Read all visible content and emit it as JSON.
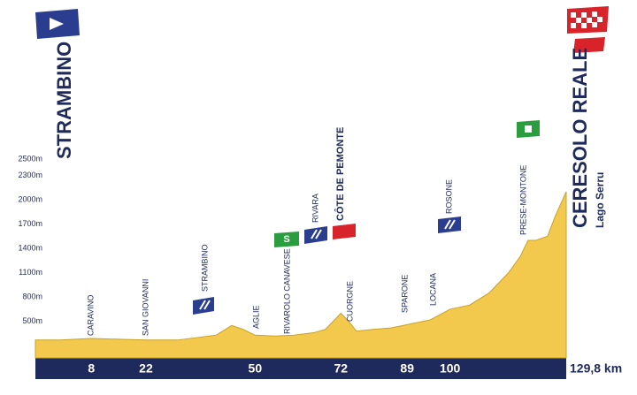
{
  "chart_data": {
    "type": "area",
    "start": "STRAMBINO",
    "finish": "CERESOLO REALE",
    "finish_sub": "Lago Serru",
    "sprint_label": "S",
    "towns": [
      "CARAVINO",
      "SAN GIOVANNI",
      "STRAMBINO",
      "AGLIE",
      "RIVAROLO CANAVESE",
      "RIVARA",
      "CÔTE DE PEMONTE",
      "CUORGNE",
      "SPARONE",
      "LOCANA",
      "ROSONE",
      "PRESE-MONTONE"
    ],
    "x": [
      0,
      8,
      15,
      22,
      30,
      35,
      40,
      44,
      47,
      50,
      55,
      60,
      65,
      68,
      72,
      74,
      76,
      80,
      85,
      89,
      95,
      100,
      105,
      110,
      115,
      118,
      120,
      122,
      125,
      127,
      129.8
    ],
    "series": [
      {
        "name": "Altitude",
        "color": "#f2c94c",
        "values": [
          270,
          290,
          280,
          270,
          270,
          300,
          330,
          450,
          400,
          330,
          320,
          330,
          360,
          400,
          600,
          500,
          380,
          400,
          420,
          460,
          520,
          650,
          700,
          850,
          1100,
          1300,
          1500,
          1500,
          1550,
          1800,
          2100
        ]
      }
    ],
    "xlim": [
      0,
      129.8
    ],
    "ylim": [
      50,
      2600
    ],
    "xticks": [
      8,
      22,
      50,
      72,
      89,
      100,
      {
        "value": 129.8,
        "label": "129,8 km"
      }
    ],
    "yticks": [
      {
        "value": 500,
        "label": "500m"
      },
      {
        "value": 800,
        "label": "800m"
      },
      {
        "value": 1100,
        "label": "1100m"
      },
      {
        "value": 1400,
        "label": "1400m"
      },
      {
        "value": 1700,
        "label": "1700m"
      },
      {
        "value": 2000,
        "label": "2000m"
      },
      {
        "value": 2300,
        "label": "2300m"
      },
      {
        "value": 2500,
        "label": "2500m"
      }
    ],
    "grid": false
  }
}
